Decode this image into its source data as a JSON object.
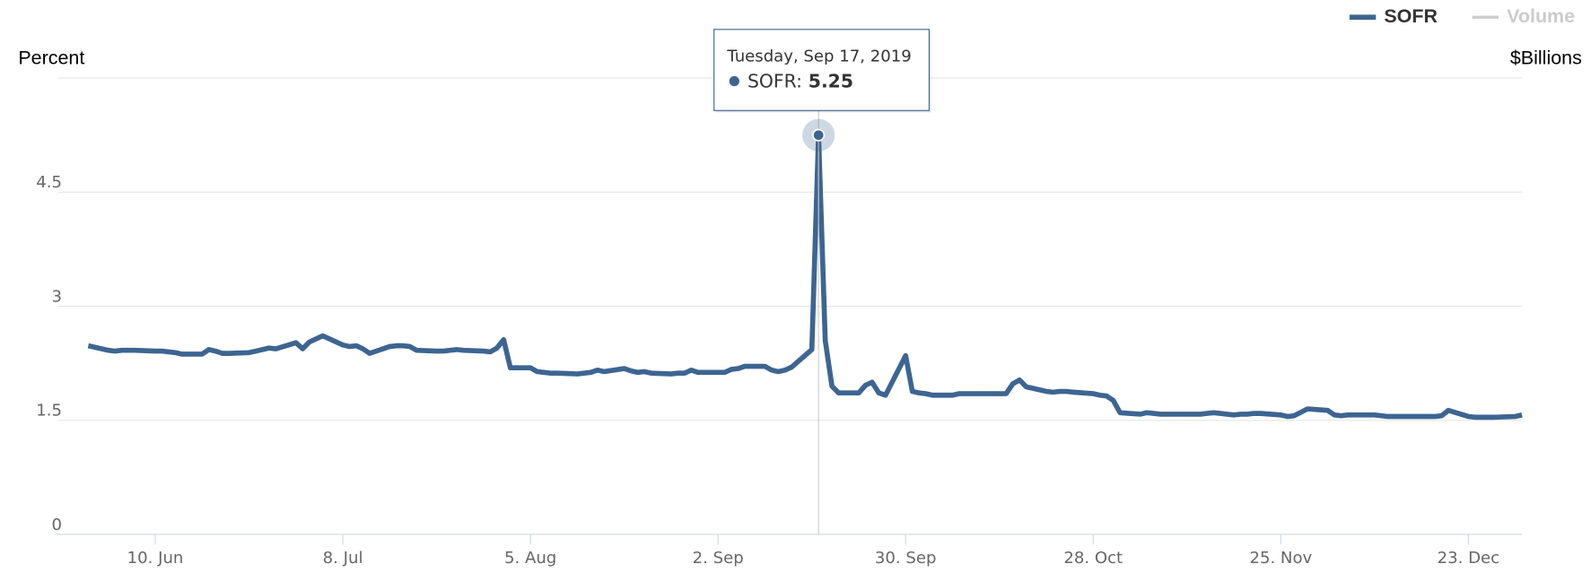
{
  "chart_data": {
    "type": "line",
    "y_axis_title": "Percent",
    "y2_axis_title": "$Billions",
    "x": [
      "2019-05-31",
      "2019-06-03",
      "2019-06-04",
      "2019-06-05",
      "2019-06-06",
      "2019-06-07",
      "2019-06-10",
      "2019-06-11",
      "2019-06-12",
      "2019-06-13",
      "2019-06-14",
      "2019-06-17",
      "2019-06-18",
      "2019-06-19",
      "2019-06-20",
      "2019-06-21",
      "2019-06-24",
      "2019-06-25",
      "2019-06-26",
      "2019-06-27",
      "2019-06-28",
      "2019-07-01",
      "2019-07-02",
      "2019-07-03",
      "2019-07-05",
      "2019-07-08",
      "2019-07-09",
      "2019-07-10",
      "2019-07-11",
      "2019-07-12",
      "2019-07-15",
      "2019-07-16",
      "2019-07-17",
      "2019-07-18",
      "2019-07-19",
      "2019-07-22",
      "2019-07-23",
      "2019-07-24",
      "2019-07-25",
      "2019-07-26",
      "2019-07-29",
      "2019-07-30",
      "2019-07-31",
      "2019-08-01",
      "2019-08-02",
      "2019-08-05",
      "2019-08-06",
      "2019-08-07",
      "2019-08-08",
      "2019-08-09",
      "2019-08-12",
      "2019-08-13",
      "2019-08-14",
      "2019-08-15",
      "2019-08-16",
      "2019-08-19",
      "2019-08-20",
      "2019-08-21",
      "2019-08-22",
      "2019-08-23",
      "2019-08-26",
      "2019-08-27",
      "2019-08-28",
      "2019-08-29",
      "2019-08-30",
      "2019-09-03",
      "2019-09-04",
      "2019-09-05",
      "2019-09-06",
      "2019-09-09",
      "2019-09-10",
      "2019-09-11",
      "2019-09-12",
      "2019-09-13",
      "2019-09-16",
      "2019-09-17",
      "2019-09-18",
      "2019-09-19",
      "2019-09-20",
      "2019-09-23",
      "2019-09-24",
      "2019-09-25",
      "2019-09-26",
      "2019-09-27",
      "2019-09-30",
      "2019-10-01",
      "2019-10-02",
      "2019-10-03",
      "2019-10-04",
      "2019-10-07",
      "2019-10-08",
      "2019-10-09",
      "2019-10-10",
      "2019-10-11",
      "2019-10-15",
      "2019-10-16",
      "2019-10-17",
      "2019-10-18",
      "2019-10-21",
      "2019-10-22",
      "2019-10-23",
      "2019-10-24",
      "2019-10-25",
      "2019-10-28",
      "2019-10-29",
      "2019-10-30",
      "2019-10-31",
      "2019-11-01",
      "2019-11-04",
      "2019-11-05",
      "2019-11-06",
      "2019-11-07",
      "2019-11-08",
      "2019-11-12",
      "2019-11-13",
      "2019-11-14",
      "2019-11-15",
      "2019-11-18",
      "2019-11-19",
      "2019-11-20",
      "2019-11-21",
      "2019-11-22",
      "2019-11-25",
      "2019-11-26",
      "2019-11-27",
      "2019-11-29",
      "2019-12-02",
      "2019-12-03",
      "2019-12-04",
      "2019-12-05",
      "2019-12-06",
      "2019-12-09",
      "2019-12-10",
      "2019-12-11",
      "2019-12-12",
      "2019-12-13",
      "2019-12-16",
      "2019-12-17",
      "2019-12-18",
      "2019-12-19",
      "2019-12-20",
      "2019-12-23",
      "2019-12-24",
      "2019-12-26",
      "2019-12-27",
      "2019-12-30",
      "2019-12-31"
    ],
    "series": [
      {
        "name": "SOFR",
        "color": "#3d6591",
        "values": [
          2.48,
          2.42,
          2.41,
          2.42,
          2.42,
          2.42,
          2.41,
          2.41,
          2.4,
          2.39,
          2.37,
          2.37,
          2.43,
          2.41,
          2.38,
          2.38,
          2.39,
          2.41,
          2.43,
          2.45,
          2.44,
          2.52,
          2.44,
          2.53,
          2.61,
          2.49,
          2.47,
          2.48,
          2.44,
          2.38,
          2.47,
          2.48,
          2.48,
          2.47,
          2.42,
          2.41,
          2.41,
          2.42,
          2.43,
          2.42,
          2.41,
          2.4,
          2.45,
          2.56,
          2.19,
          2.19,
          2.14,
          2.13,
          2.12,
          2.12,
          2.11,
          2.12,
          2.13,
          2.16,
          2.14,
          2.18,
          2.15,
          2.13,
          2.14,
          2.12,
          2.11,
          2.12,
          2.12,
          2.16,
          2.13,
          2.13,
          2.17,
          2.18,
          2.21,
          2.21,
          2.16,
          2.14,
          2.16,
          2.2,
          2.43,
          5.25,
          2.55,
          1.95,
          1.86,
          1.86,
          1.96,
          2.0,
          1.86,
          1.83,
          2.35,
          1.88,
          1.86,
          1.85,
          1.83,
          1.83,
          1.85,
          1.85,
          1.85,
          1.85,
          1.85,
          1.98,
          2.03,
          1.94,
          1.88,
          1.87,
          1.88,
          1.88,
          1.87,
          1.85,
          1.83,
          1.82,
          1.76,
          1.6,
          1.58,
          1.6,
          1.59,
          1.58,
          1.58,
          1.58,
          1.58,
          1.59,
          1.6,
          1.57,
          1.58,
          1.58,
          1.59,
          1.59,
          1.57,
          1.55,
          1.56,
          1.65,
          1.63,
          1.57,
          1.56,
          1.57,
          1.57,
          1.57,
          1.56,
          1.55,
          1.55,
          1.55,
          1.55,
          1.55,
          1.55,
          1.56,
          1.63,
          1.55,
          1.54,
          1.54,
          1.54,
          1.55,
          1.57
        ]
      },
      {
        "name": "Volume",
        "color": "#cccccc",
        "visible": false
      }
    ],
    "xlim": [
      "2019-05-31",
      "2019-12-31"
    ],
    "xticks": [
      {
        "value": "2019-06-10",
        "label": "10. Jun"
      },
      {
        "value": "2019-07-08",
        "label": "8. Jul"
      },
      {
        "value": "2019-08-05",
        "label": "5. Aug"
      },
      {
        "value": "2019-09-02",
        "label": "2. Sep"
      },
      {
        "value": "2019-09-30",
        "label": "30. Sep"
      },
      {
        "value": "2019-10-28",
        "label": "28. Oct"
      },
      {
        "value": "2019-11-25",
        "label": "25. Nov"
      },
      {
        "value": "2019-12-23",
        "label": "23. Dec"
      }
    ],
    "ylim": [
      0,
      6
    ],
    "yticks": [
      0,
      1.5,
      3,
      4.5
    ],
    "grid": true,
    "legend": "top-right",
    "tooltip": {
      "header": "Tuesday, Sep 17, 2019",
      "label": "SOFR:"
    }
  }
}
